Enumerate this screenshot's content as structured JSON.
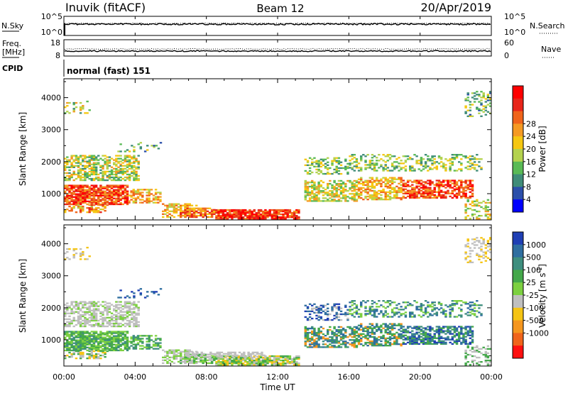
{
  "header": {
    "station": "Inuvik (fitACF)",
    "beam": "Beam 12",
    "date": "20/Apr/2019"
  },
  "chart_data": [
    {
      "type": "line",
      "name": "nsky-nsearch",
      "left_label": "N.Sky",
      "right_label": "N.Search",
      "left_ticks": [
        "10^5",
        "10^0"
      ],
      "right_ticks": [
        "10^5",
        "10^0"
      ]
    },
    {
      "type": "line",
      "name": "freq-nave",
      "left_label_top": "Freq.",
      "left_label_unit": "[MHz]",
      "right_label": "Nave",
      "left_ticks": [
        "18",
        "8"
      ],
      "right_ticks": [
        "60",
        "0"
      ],
      "ylim_left": [
        8,
        18
      ],
      "ylim_right": [
        0,
        60
      ]
    },
    {
      "type": "text",
      "name": "cpid",
      "label": "CPID",
      "value": "normal (fast) 151"
    },
    {
      "type": "heatmap",
      "name": "power",
      "xlabel": "",
      "ylabel": "Slant Range [km]",
      "y_ticks": [
        "1000",
        "2000",
        "3000",
        "4000"
      ],
      "y_tick_values": [
        1000,
        2000,
        3000,
        4000
      ],
      "ylim": [
        180,
        4590
      ],
      "xlim_hours": [
        0,
        24
      ],
      "colorbar": {
        "label": "Power [dB]",
        "ticks": [
          "4",
          "8",
          "12",
          "16",
          "20",
          "24",
          "28"
        ],
        "colors": [
          "#0000ff",
          "#2b4faa",
          "#3f8c78",
          "#59ba55",
          "#b4d24e",
          "#f5c712",
          "#f59a23",
          "#f0641b",
          "#e8251a",
          "#ff0000"
        ]
      }
    },
    {
      "type": "heatmap",
      "name": "velocity",
      "xlabel": "Time UT",
      "ylabel": "Slant Range [km]",
      "y_ticks": [
        "1000",
        "2000",
        "3000",
        "4000"
      ],
      "y_tick_values": [
        1000,
        2000,
        3000,
        4000
      ],
      "ylim": [
        180,
        4590
      ],
      "xlim_hours": [
        0,
        24
      ],
      "x_ticks": [
        "00:00",
        "04:00",
        "08:00",
        "12:00",
        "16:00",
        "20:00",
        "00:00"
      ],
      "colorbar": {
        "label": "Velocity [m s-1]",
        "ticks": [
          "1000",
          "500",
          "100",
          "25",
          "-25",
          "-100",
          "-500",
          "-1000"
        ],
        "colors": [
          "#1f3fb4",
          "#2f6ea0",
          "#3e8e7e",
          "#44a84a",
          "#7cd040",
          "#bfbfbf",
          "#f5c414",
          "#f5961e",
          "#f0641b",
          "#ff1010"
        ]
      }
    }
  ]
}
